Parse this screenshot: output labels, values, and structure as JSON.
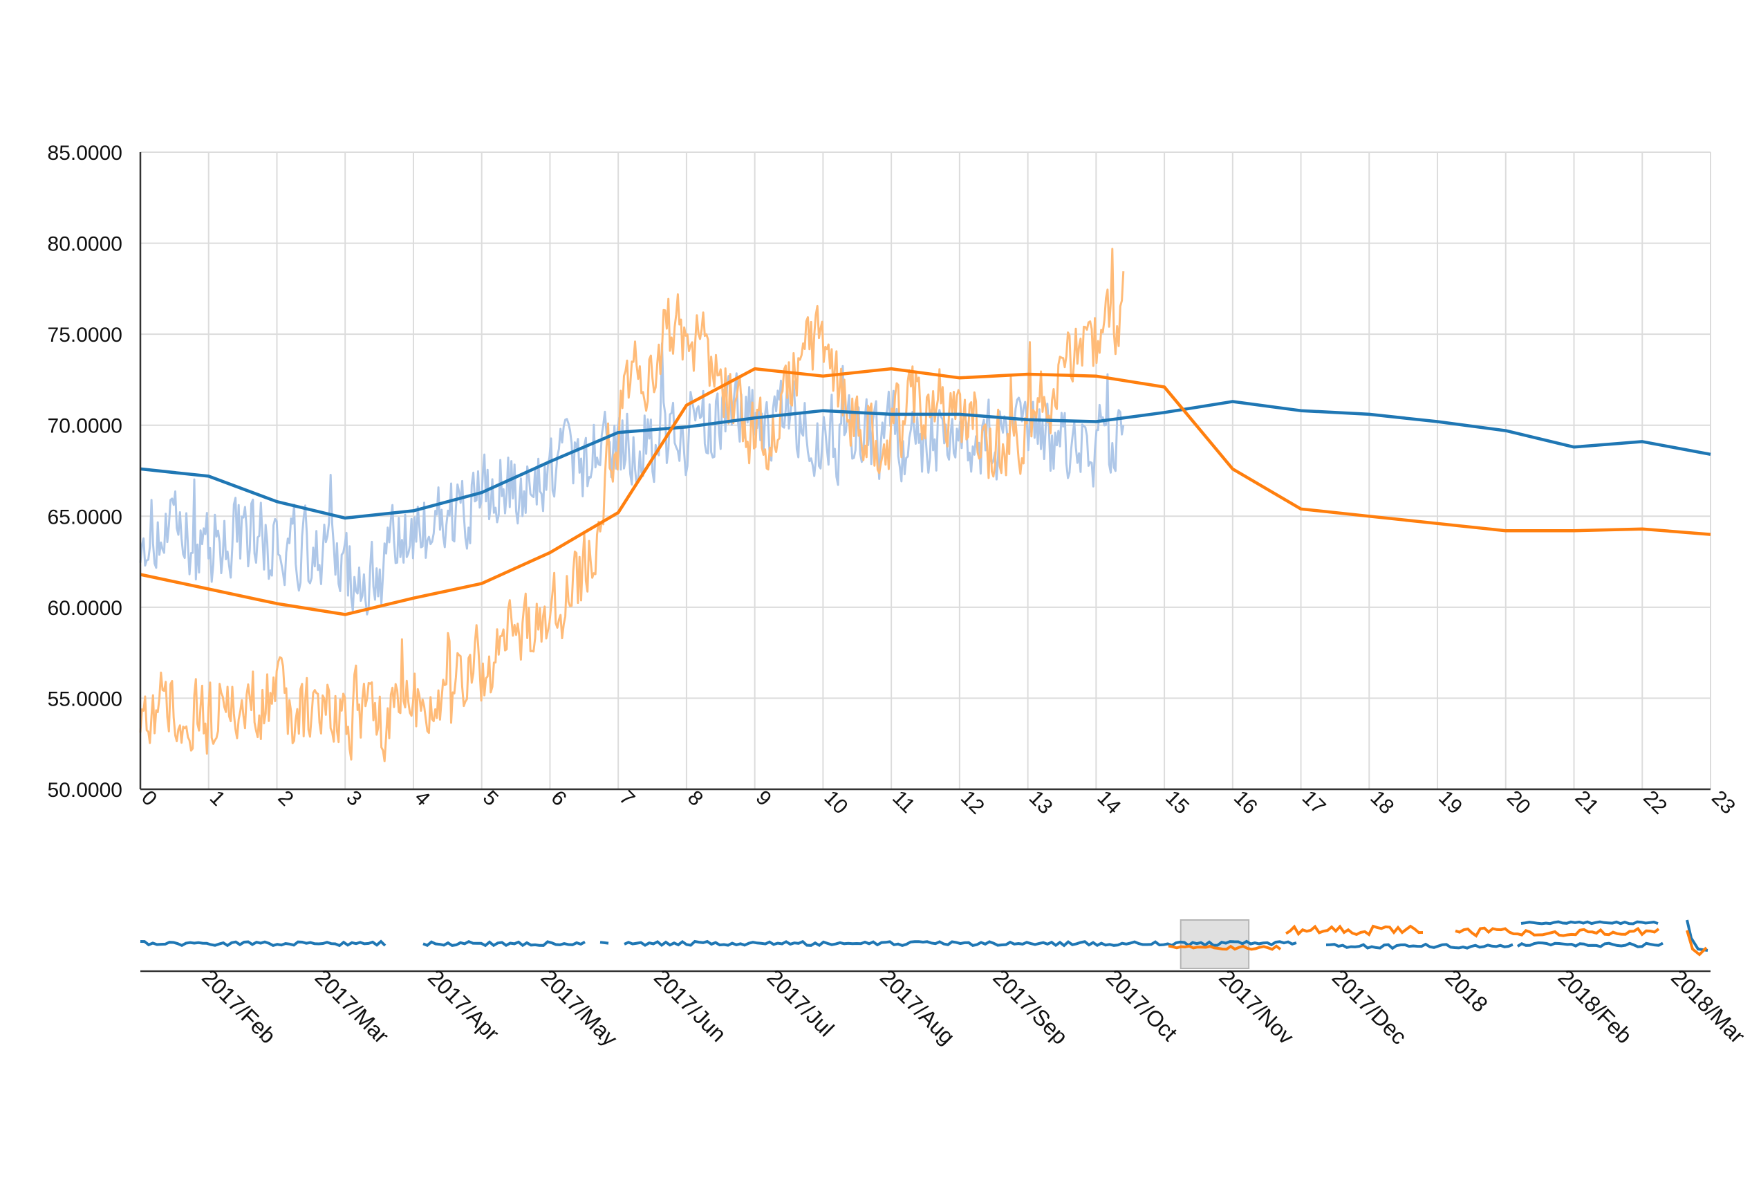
{
  "chart_data": [
    {
      "type": "line",
      "title": "",
      "xlabel": "",
      "ylabel": "",
      "xlim": [
        0,
        23
      ],
      "ylim": [
        50,
        85
      ],
      "x_ticks": [
        0,
        1,
        2,
        3,
        4,
        5,
        6,
        7,
        8,
        9,
        10,
        11,
        12,
        13,
        14,
        15,
        16,
        17,
        18,
        19,
        20,
        21,
        22,
        23
      ],
      "y_ticks": [
        "50.0000",
        "55.0000",
        "60.0000",
        "65.0000",
        "70.0000",
        "75.0000",
        "80.0000",
        "85.0000"
      ],
      "y_tick_values": [
        50,
        55,
        60,
        65,
        70,
        75,
        80,
        85
      ],
      "grid": true,
      "series": [
        {
          "color": "#aec7e8",
          "style": "noisy",
          "x_range": [
            0,
            14.4
          ],
          "values": [
            64.5,
            64.0,
            63.5,
            63.5,
            64.0,
            64.0,
            63.5,
            63.0,
            62.5,
            62.0,
            61.5,
            62.5,
            63.5,
            64.5,
            65.0,
            65.5,
            66.0,
            66.5,
            67.0,
            68.5,
            68.0,
            68.5,
            69.5,
            69.0,
            69.5,
            70.0,
            70.0,
            70.5,
            70.0,
            70.0,
            69.5,
            69.5,
            69.5,
            69.5,
            69.5,
            69.5,
            69.5,
            69.0,
            69.0,
            69.5,
            69.0,
            69.0,
            69.0,
            69.0,
            69.5
          ],
          "amplitude": 2.8
        },
        {
          "color": "#ffbb78",
          "style": "noisy",
          "x_range": [
            0,
            14.4
          ],
          "values": [
            55.0,
            54.5,
            54.0,
            54.0,
            54.5,
            55.0,
            55.0,
            54.5,
            54.0,
            54.0,
            54.5,
            54.0,
            54.0,
            55.0,
            55.5,
            56.5,
            57.5,
            59.0,
            59.5,
            60.0,
            62.0,
            68.0,
            72.0,
            74.0,
            75.5,
            74.5,
            72.5,
            70.0,
            69.0,
            72.5,
            74.5,
            72.5,
            70.5,
            69.0,
            70.0,
            72.0,
            71.0,
            70.5,
            69.0,
            68.0,
            70.0,
            72.5,
            74.5,
            75.0,
            76.5
          ],
          "amplitude": 2.6
        },
        {
          "color": "#1f77b4",
          "style": "trend",
          "x": [
            0,
            1,
            2,
            3,
            4,
            5,
            6,
            7,
            8,
            9,
            10,
            11,
            12,
            13,
            14,
            15,
            16,
            17,
            18,
            19,
            20,
            21,
            22,
            23
          ],
          "values": [
            67.6,
            67.2,
            65.8,
            64.9,
            65.3,
            66.3,
            68.0,
            69.6,
            69.9,
            70.4,
            70.8,
            70.6,
            70.6,
            70.3,
            70.2,
            70.7,
            71.3,
            70.8,
            70.6,
            70.2,
            69.7,
            68.8,
            69.1,
            68.4
          ]
        },
        {
          "color": "#ff7f0e",
          "style": "trend",
          "x": [
            0,
            1,
            2,
            3,
            4,
            5,
            6,
            7,
            8,
            9,
            10,
            11,
            12,
            13,
            14,
            15,
            16,
            17,
            18,
            19,
            20,
            21,
            22,
            23
          ],
          "values": [
            61.8,
            61.0,
            60.2,
            59.6,
            60.5,
            61.3,
            63.0,
            65.2,
            71.1,
            73.1,
            72.7,
            73.1,
            72.6,
            72.8,
            72.7,
            72.1,
            67.6,
            65.4,
            65.0,
            64.6,
            64.2,
            64.2,
            64.3,
            64.0
          ]
        }
      ]
    },
    {
      "type": "line",
      "role": "range-navigator",
      "x_tick_labels": [
        "2017/Feb",
        "2017/Mar",
        "2017/Apr",
        "2017/May",
        "2017/Jun",
        "2017/Jul",
        "2017/Aug",
        "2017/Sep",
        "2017/Oct",
        "2017/Nov",
        "2017/Dec",
        "2018",
        "2018/Feb",
        "2018/Mar"
      ],
      "selected_range": [
        "2017/Oct",
        "2017/Nov"
      ],
      "series": [
        {
          "color": "#1f77b4"
        },
        {
          "color": "#ff7f0e"
        }
      ]
    }
  ]
}
